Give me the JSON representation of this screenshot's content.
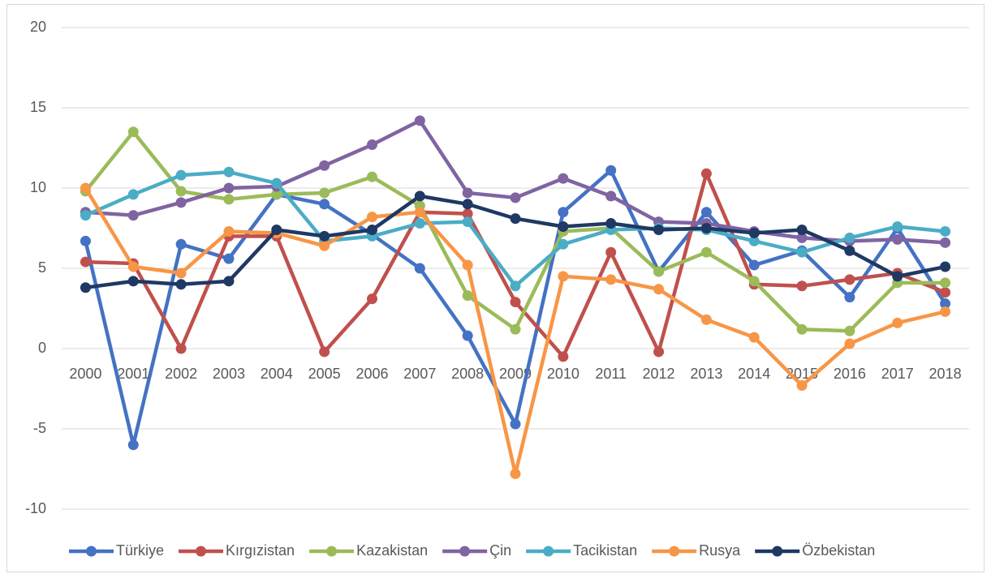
{
  "chart_data": {
    "type": "line",
    "categories": [
      "2000",
      "2001",
      "2002",
      "2003",
      "2004",
      "2005",
      "2006",
      "2007",
      "2008",
      "2009",
      "2010",
      "2011",
      "2012",
      "2013",
      "2014",
      "2015",
      "2016",
      "2017",
      "2018"
    ],
    "ylim": [
      -10,
      20
    ],
    "yticks": [
      -10,
      -5,
      0,
      5,
      10,
      15,
      20
    ],
    "grid": true,
    "legend": "bottom",
    "series": [
      {
        "name": "Türkiye",
        "color": "#4472c4",
        "values": [
          6.7,
          -6.0,
          6.5,
          5.6,
          9.6,
          9.0,
          7.1,
          5.0,
          0.8,
          -4.7,
          8.5,
          11.1,
          4.8,
          8.5,
          5.2,
          6.1,
          3.2,
          7.5,
          2.8
        ]
      },
      {
        "name": "Kırgızistan",
        "color": "#c0504d",
        "values": [
          5.4,
          5.3,
          0.0,
          7.0,
          7.0,
          -0.2,
          3.1,
          8.5,
          8.4,
          2.9,
          -0.5,
          6.0,
          -0.2,
          10.9,
          4.0,
          3.9,
          4.3,
          4.7,
          3.5
        ]
      },
      {
        "name": "Kazakistan",
        "color": "#9bbb59",
        "values": [
          9.8,
          13.5,
          9.8,
          9.3,
          9.6,
          9.7,
          10.7,
          8.9,
          3.3,
          1.2,
          7.3,
          7.5,
          4.8,
          6.0,
          4.2,
          1.2,
          1.1,
          4.1,
          4.1
        ]
      },
      {
        "name": "Çin",
        "color": "#8064a2",
        "values": [
          8.5,
          8.3,
          9.1,
          10.0,
          10.1,
          11.4,
          12.7,
          14.2,
          9.7,
          9.4,
          10.6,
          9.5,
          7.9,
          7.8,
          7.3,
          6.9,
          6.7,
          6.8,
          6.6
        ]
      },
      {
        "name": "Tacikistan",
        "color": "#4bacc6",
        "values": [
          8.3,
          9.6,
          10.8,
          11.0,
          10.3,
          6.7,
          7.0,
          7.8,
          7.9,
          3.9,
          6.5,
          7.4,
          7.5,
          7.4,
          6.7,
          6.0,
          6.9,
          7.6,
          7.3
        ]
      },
      {
        "name": "Rusya",
        "color": "#f79646",
        "values": [
          10.0,
          5.1,
          4.7,
          7.3,
          7.2,
          6.4,
          8.2,
          8.5,
          5.2,
          -7.8,
          4.5,
          4.3,
          3.7,
          1.8,
          0.7,
          -2.3,
          0.3,
          1.6,
          2.3
        ]
      },
      {
        "name": "Özbekistan",
        "color": "#1f3864",
        "values": [
          3.8,
          4.2,
          4.0,
          4.2,
          7.4,
          7.0,
          7.4,
          9.5,
          9.0,
          8.1,
          7.6,
          7.8,
          7.4,
          7.5,
          7.2,
          7.4,
          6.1,
          4.5,
          5.1
        ]
      }
    ]
  }
}
